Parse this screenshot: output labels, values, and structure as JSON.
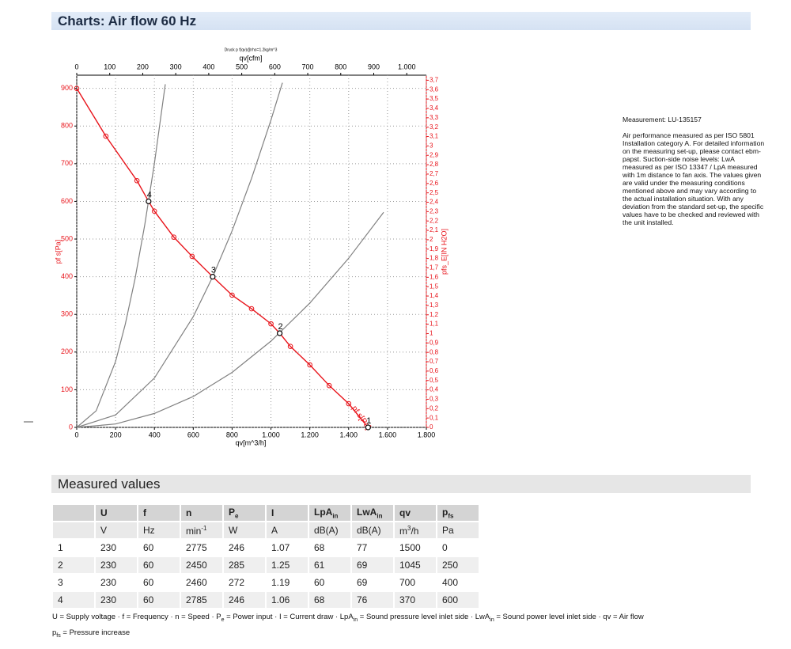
{
  "header": {
    "title": "Charts: Air flow 60 Hz"
  },
  "chart_data": {
    "type": "line",
    "subtitle": "Druck p f(qv)@rho=1.2kg/m^3",
    "x_label": "qv[m^3/h]",
    "x2_label": "qv[cfm]",
    "y_label": "pf s[Pa]",
    "y2_label": "pfs_E[IN H2O]",
    "xlim": [
      0,
      1800
    ],
    "xticks": [
      0,
      200,
      400,
      600,
      800,
      {
        "value": 1000,
        "label": "1.000"
      },
      {
        "value": 1200,
        "label": "1.200"
      },
      {
        "value": 1400,
        "label": "1.400"
      },
      {
        "value": 1600,
        "label": "1.600"
      },
      {
        "value": 1800,
        "label": "1.800"
      }
    ],
    "x2lim": [
      0,
      1059.4
    ],
    "x2ticks": [
      0,
      100,
      200,
      300,
      400,
      500,
      600,
      700,
      800,
      900,
      {
        "value": 1000,
        "label": "1.000"
      }
    ],
    "ylim": [
      0,
      935
    ],
    "yticks": [
      0,
      100,
      200,
      300,
      400,
      500,
      600,
      700,
      800,
      900
    ],
    "y2lim": [
      0,
      3.754
    ],
    "y2ticks": [
      0,
      {
        "value": 0.1,
        "label": "0,1"
      },
      {
        "value": 0.2,
        "label": "0,2"
      },
      {
        "value": 0.3,
        "label": "0,3"
      },
      {
        "value": 0.4,
        "label": "0,4"
      },
      {
        "value": 0.5,
        "label": "0,5"
      },
      {
        "value": 0.6,
        "label": "0,6"
      },
      {
        "value": 0.7,
        "label": "0,7"
      },
      {
        "value": 0.8,
        "label": "0,8"
      },
      {
        "value": 0.9,
        "label": "0,9"
      },
      1,
      {
        "value": 1.1,
        "label": "1,1"
      },
      {
        "value": 1.2,
        "label": "1,2"
      },
      {
        "value": 1.3,
        "label": "1,3"
      },
      {
        "value": 1.4,
        "label": "1,4"
      },
      {
        "value": 1.5,
        "label": "1,5"
      },
      {
        "value": 1.6,
        "label": "1,6"
      },
      {
        "value": 1.7,
        "label": "1,7"
      },
      {
        "value": 1.8,
        "label": "1,8"
      },
      {
        "value": 1.9,
        "label": "1,9"
      },
      2,
      {
        "value": 2.1,
        "label": "2,1"
      },
      {
        "value": 2.2,
        "label": "2,2"
      },
      {
        "value": 2.3,
        "label": "2,3"
      },
      {
        "value": 2.4,
        "label": "2,4"
      },
      {
        "value": 2.5,
        "label": "2,5"
      },
      {
        "value": 2.6,
        "label": "2,6"
      },
      {
        "value": 2.7,
        "label": "2,7"
      },
      {
        "value": 2.8,
        "label": "2,8"
      },
      {
        "value": 2.9,
        "label": "2,9"
      },
      3,
      {
        "value": 3.1,
        "label": "3,1"
      },
      {
        "value": 3.2,
        "label": "3,2"
      },
      {
        "value": 3.3,
        "label": "3,3"
      },
      {
        "value": 3.4,
        "label": "3,4"
      },
      {
        "value": 3.5,
        "label": "3,5"
      },
      {
        "value": 3.6,
        "label": "3,6"
      },
      {
        "value": 3.7,
        "label": "3,7"
      }
    ],
    "grid": true,
    "series": [
      {
        "name": "pf s[Pa]",
        "color": "#e8141b",
        "markers": true,
        "x": [
          0,
          150,
          310,
          370,
          400,
          500,
          594,
          700,
          800,
          900,
          1000,
          1045,
          1100,
          1200,
          1300,
          1400,
          1500
        ],
        "values": [
          900,
          773,
          655,
          600,
          574,
          505,
          454,
          400,
          351,
          315,
          275,
          250,
          215,
          166,
          111,
          63,
          0
        ]
      },
      {
        "color": "#808080",
        "markers": false,
        "x": [
          0,
          100,
          200,
          250,
          300,
          350,
          400,
          456
        ],
        "values": [
          0,
          44,
          175,
          274,
          394,
          537,
          701,
          911
        ]
      },
      {
        "color": "#808080",
        "markers": false,
        "x": [
          0,
          200,
          400,
          600,
          700,
          800,
          900,
          1000,
          1059
        ],
        "values": [
          0,
          33,
          131,
          294,
          400,
          522,
          661,
          816,
          915
        ]
      },
      {
        "color": "#808080",
        "markers": false,
        "x": [
          0,
          200,
          400,
          600,
          800,
          1000,
          1200,
          1400,
          1580
        ],
        "values": [
          0,
          9,
          37,
          82,
          146,
          229,
          330,
          449,
          571
        ]
      }
    ],
    "operating_points": [
      {
        "label": "1",
        "x": 1500,
        "y": 0
      },
      {
        "label": "2",
        "x": 1045,
        "y": 250
      },
      {
        "label": "3",
        "x": 700,
        "y": 400
      },
      {
        "label": "4",
        "x": 370,
        "y": 600
      }
    ]
  },
  "measurement": {
    "id": "Measurement: LU-135157",
    "text": "Air performance measured as per ISO 5801 Installation category A. For detailed information on the measuring set-up, please contact ebm-papst. Suction-side noise levels: LwA measured as per ISO 13347 / LpA measured with 1m distance to fan axis. The values given are valid under the measuring conditions mentioned above and may vary according to the actual installation situation. With any deviation from the standard set-up, the specific values have to be checked and reviewed with the unit installed."
  },
  "measured_values": {
    "title": "Measured values",
    "header": [
      null,
      "U",
      "f",
      "n",
      {
        "main": "P",
        "sub": "e"
      },
      "I",
      {
        "main": "LpA",
        "sub": "in"
      },
      {
        "main": "LwA",
        "sub": "in"
      },
      "qv",
      {
        "main": "p",
        "sub": "fs"
      }
    ],
    "units": [
      null,
      "V",
      "Hz",
      {
        "main": "min",
        "sup": "-1"
      },
      "W",
      "A",
      "dB(A)",
      "dB(A)",
      {
        "main": "m",
        "sup": "3",
        "rest": "/h"
      },
      "Pa"
    ],
    "rows": [
      [
        1,
        230,
        60,
        2775,
        246,
        1.07,
        68,
        77,
        1500,
        0
      ],
      [
        2,
        230,
        60,
        2450,
        285,
        1.25,
        61,
        69,
        1045,
        250
      ],
      [
        3,
        230,
        60,
        2460,
        272,
        1.19,
        60,
        69,
        700,
        400
      ],
      [
        4,
        230,
        60,
        2785,
        246,
        1.06,
        68,
        76,
        370,
        600
      ]
    ],
    "footnote": [
      [
        {
          "t": "U = Supply voltage · f = Frequency · n = Speed · P"
        },
        {
          "sub": "e"
        },
        {
          "t": " = Power input · I = Current draw · LpA"
        },
        {
          "sub": "in"
        },
        {
          "t": " = Sound pressure level inlet side · LwA"
        },
        {
          "sub": "in"
        },
        {
          "t": " = Sound power level inlet side · qv = Air flow"
        }
      ],
      [
        {
          "t": "p"
        },
        {
          "sub": "fs"
        },
        {
          "t": " = Pressure increase"
        }
      ]
    ]
  }
}
